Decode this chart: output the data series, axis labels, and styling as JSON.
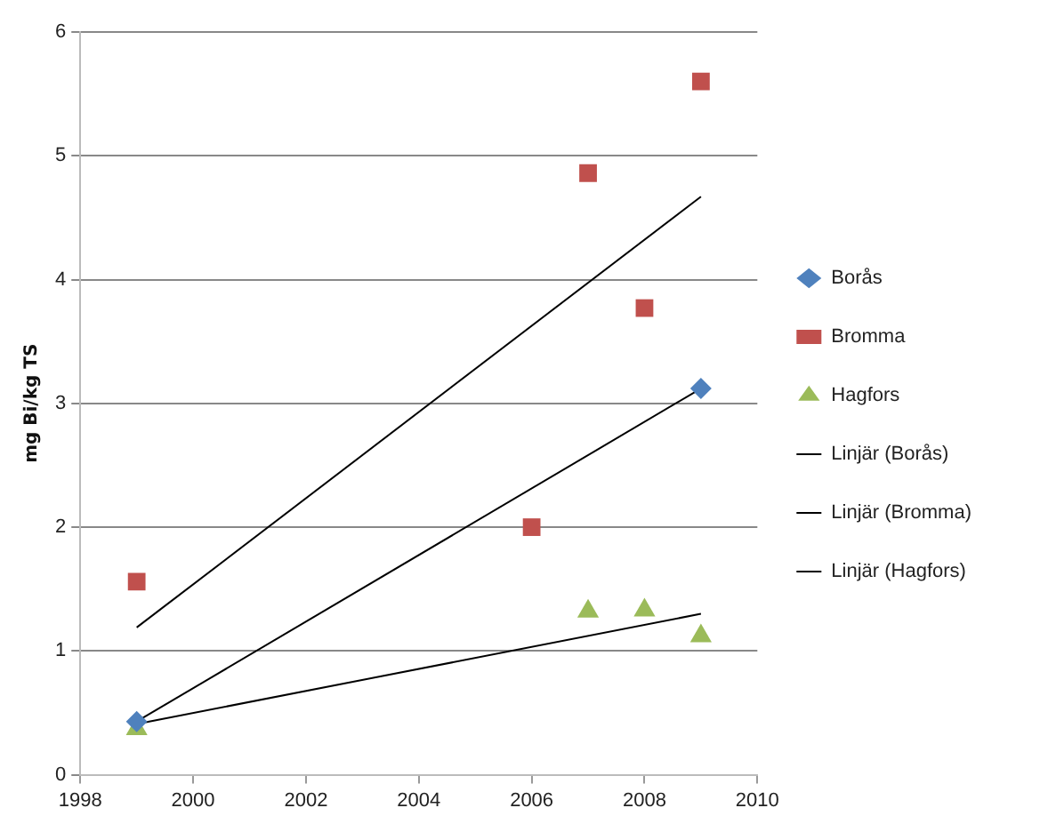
{
  "chart_data": {
    "type": "scatter",
    "ylabel": "mg Bi/kg TS",
    "xlim": [
      1998,
      2010
    ],
    "xticks": [
      1998,
      2000,
      2002,
      2004,
      2006,
      2008,
      2010
    ],
    "ylim": [
      0,
      6
    ],
    "yticks": [
      0,
      1,
      2,
      3,
      4,
      5,
      6
    ],
    "grid": "y",
    "legend": "right",
    "series": [
      {
        "name": "Borås",
        "color": "#4f81bd",
        "marker": "diamond",
        "x": [
          1999,
          2009
        ],
        "values": [
          0.43,
          3.12
        ]
      },
      {
        "name": "Bromma",
        "color": "#c0504d",
        "marker": "square",
        "x": [
          1999,
          2006,
          2007,
          2008,
          2009
        ],
        "values": [
          1.56,
          2.0,
          4.86,
          3.77,
          5.6
        ]
      },
      {
        "name": "Hagfors",
        "color": "#9bbb59",
        "marker": "triangle",
        "x": [
          1999,
          2007,
          2008,
          2009
        ],
        "values": [
          0.37,
          1.32,
          1.33,
          1.12
        ]
      },
      {
        "name": "Linjär (Borås)",
        "type": "line",
        "color": "#000000",
        "marker": "none",
        "x": [
          1999,
          2009
        ],
        "values": [
          0.43,
          3.12
        ]
      },
      {
        "name": "Linjär (Bromma)",
        "type": "line",
        "color": "#000000",
        "marker": "none",
        "x": [
          1999,
          2009
        ],
        "values": [
          1.19,
          4.67
        ]
      },
      {
        "name": "Linjär (Hagfors)",
        "type": "line",
        "color": "#000000",
        "marker": "none",
        "x": [
          1999,
          2009
        ],
        "values": [
          0.41,
          1.3
        ]
      }
    ]
  }
}
